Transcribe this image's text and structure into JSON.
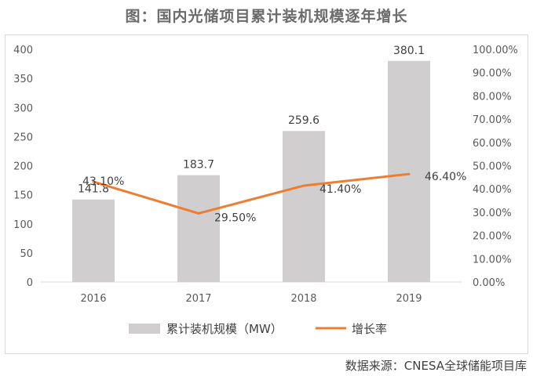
{
  "title": "图：国内光储项目累计装机规模逐年增长",
  "source": "数据来源：CNESA全球储能项目库",
  "colors": {
    "bar": "#d0cece",
    "line": "#ed7d31"
  },
  "chart_data": {
    "type": "bar",
    "categories": [
      "2016",
      "2017",
      "2018",
      "2019"
    ],
    "series": [
      {
        "name": "累计装机规模（MW）",
        "type": "bar",
        "axis": "left",
        "values": [
          141.8,
          183.7,
          259.6,
          380.1
        ],
        "labels": [
          "141.8",
          "183.7",
          "259.6",
          "380.1"
        ]
      },
      {
        "name": "增长率",
        "type": "line",
        "axis": "right",
        "values": [
          43.1,
          29.5,
          41.4,
          46.4
        ],
        "labels": [
          "43.10%",
          "29.50%",
          "41.40%",
          "46.40%"
        ]
      }
    ],
    "y_left": {
      "ylim": [
        0,
        400
      ],
      "ticks": [
        "0",
        "50",
        "100",
        "150",
        "200",
        "250",
        "300",
        "350",
        "400"
      ]
    },
    "y_right": {
      "ylim": [
        0,
        100
      ],
      "ticks": [
        "0.00%",
        "10.00%",
        "20.00%",
        "30.00%",
        "40.00%",
        "50.00%",
        "60.00%",
        "70.00%",
        "80.00%",
        "90.00%",
        "100.00%"
      ]
    },
    "legend_position": "bottom"
  }
}
